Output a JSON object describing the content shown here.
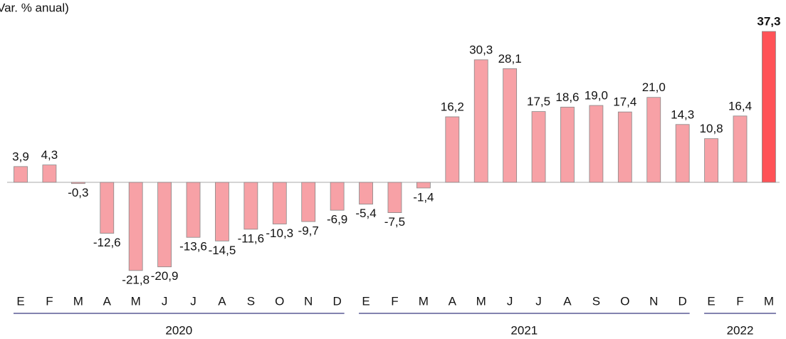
{
  "chart_data": {
    "type": "bar",
    "title": "Var. % anual)",
    "categories": [
      "E",
      "F",
      "M",
      "A",
      "M",
      "J",
      "J",
      "A",
      "S",
      "O",
      "N",
      "D",
      "E",
      "F",
      "M",
      "A",
      "M",
      "J",
      "J",
      "A",
      "S",
      "O",
      "N",
      "D",
      "E",
      "F",
      "M"
    ],
    "values": [
      3.9,
      4.3,
      -0.3,
      -12.6,
      -21.8,
      -20.9,
      -13.6,
      -14.5,
      -11.6,
      -10.3,
      -9.7,
      -6.9,
      -5.4,
      -7.5,
      -1.4,
      16.2,
      30.3,
      28.1,
      17.5,
      18.6,
      19.0,
      17.4,
      21.0,
      14.3,
      10.8,
      16.4,
      37.3
    ],
    "value_labels": [
      "3,9",
      "4,3",
      "-0,3",
      "-12,6",
      "-21,8",
      "-20,9",
      "-13,6",
      "-14,5",
      "-11,6",
      "-10,3",
      "-9,7",
      "-6,9",
      "-5,4",
      "-7,5",
      "-1,4",
      "16,2",
      "30,3",
      "28,1",
      "17,5",
      "18,6",
      "19,0",
      "17,4",
      "21,0",
      "14,3",
      "10,8",
      "16,4",
      "37,3"
    ],
    "color": "#f7a1a6",
    "highlight": {
      "index": 26,
      "color": "#ff5257"
    },
    "groups": [
      {
        "label": "2020",
        "count": 12
      },
      {
        "label": "2021",
        "count": 12
      },
      {
        "label": "2022",
        "count": 3
      }
    ],
    "ylim": [
      -23,
      40
    ]
  }
}
